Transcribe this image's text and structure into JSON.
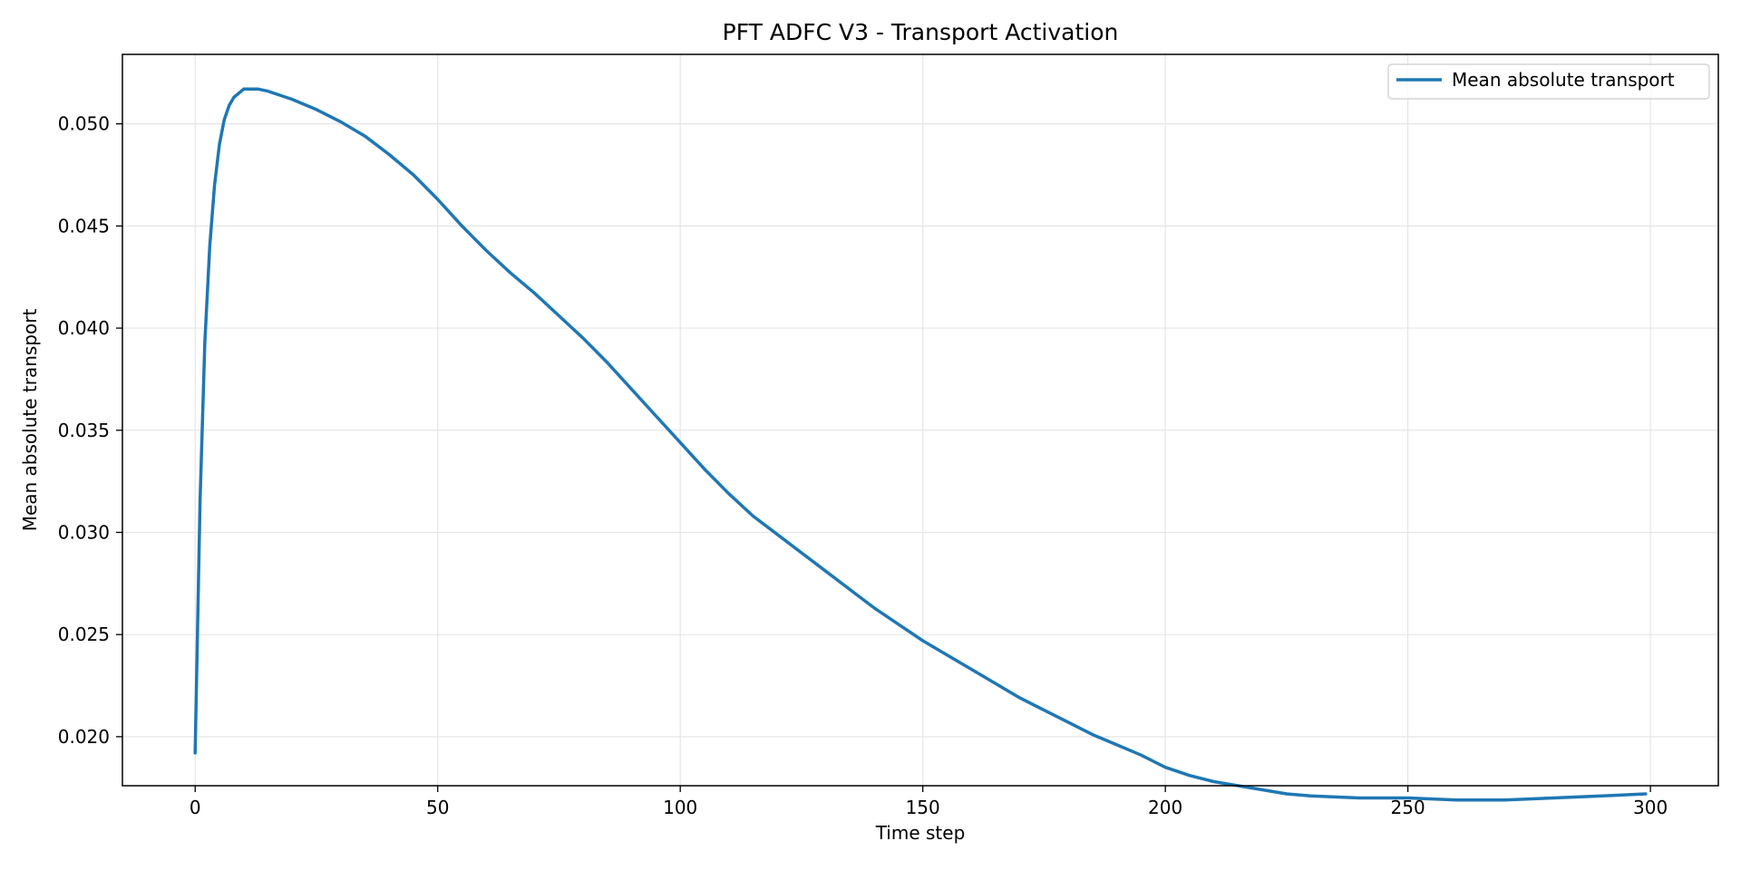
{
  "chart_data": {
    "type": "line",
    "title": "PFT ADFC V3 - Transport Activation",
    "xlabel": "Time step",
    "ylabel": "Mean absolute transport",
    "xlim": [
      -15,
      314
    ],
    "ylim": [
      0.0176,
      0.0534
    ],
    "xticks": [
      0,
      50,
      100,
      150,
      200,
      250,
      300
    ],
    "xtick_labels": [
      "0",
      "50",
      "100",
      "150",
      "200",
      "250",
      "300"
    ],
    "yticks": [
      0.02,
      0.025,
      0.03,
      0.035,
      0.04,
      0.045,
      0.05
    ],
    "ytick_labels": [
      "0.020",
      "0.025",
      "0.030",
      "0.035",
      "0.040",
      "0.045",
      "0.050"
    ],
    "grid": true,
    "legend_position": "top-right",
    "color": "#1f77b4",
    "series": [
      {
        "name": "Mean absolute transport",
        "x": [
          0,
          1,
          2,
          3,
          4,
          5,
          6,
          7,
          8,
          9,
          10,
          11,
          12,
          13,
          15,
          20,
          25,
          30,
          35,
          40,
          45,
          50,
          55,
          60,
          65,
          70,
          75,
          80,
          85,
          90,
          95,
          100,
          105,
          110,
          115,
          120,
          125,
          130,
          135,
          140,
          145,
          150,
          155,
          160,
          165,
          170,
          175,
          180,
          185,
          190,
          195,
          200,
          205,
          210,
          215,
          220,
          225,
          230,
          240,
          250,
          260,
          270,
          280,
          290,
          299
        ],
        "y": [
          0.0192,
          0.0315,
          0.0393,
          0.044,
          0.047,
          0.049,
          0.0502,
          0.0509,
          0.0513,
          0.0515,
          0.0517,
          0.0517,
          0.0517,
          0.0517,
          0.0516,
          0.0512,
          0.0507,
          0.0501,
          0.0494,
          0.0485,
          0.0475,
          0.0463,
          0.045,
          0.0438,
          0.0427,
          0.0417,
          0.0406,
          0.0395,
          0.0383,
          0.037,
          0.0357,
          0.0344,
          0.0331,
          0.0319,
          0.0308,
          0.0299,
          0.029,
          0.0281,
          0.0272,
          0.0263,
          0.0255,
          0.0247,
          0.024,
          0.0233,
          0.0226,
          0.0219,
          0.0213,
          0.0207,
          0.0201,
          0.0196,
          0.0191,
          0.0185,
          0.0181,
          0.0178,
          0.0176,
          0.0174,
          0.0172,
          0.0171,
          0.017,
          0.017,
          0.0169,
          0.0169,
          0.017,
          0.0171,
          0.0172
        ]
      }
    ]
  }
}
